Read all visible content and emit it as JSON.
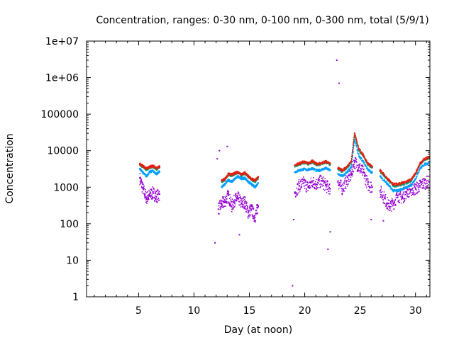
{
  "chart_data": {
    "type": "scatter",
    "title": "Concentration, ranges: 0-30 nm, 0-100 nm, 0-300 nm, total (5/9/1)",
    "xlabel": "Day (at noon)",
    "ylabel": "Concentration",
    "xlim": [
      0.3,
      31.3
    ],
    "ylim": [
      1,
      10000000
    ],
    "yscale": "log",
    "grid": false,
    "legend": "none",
    "x_ticks": [
      5,
      10,
      15,
      20,
      25,
      30
    ],
    "x_tick_labels": [
      "5",
      "10",
      "15",
      "20",
      "25",
      "30"
    ],
    "y_ticks": [
      1,
      10,
      100,
      1000,
      10000,
      100000,
      1000000,
      10000000
    ],
    "y_tick_labels": [
      "1",
      "10",
      "100",
      "1000",
      "10000",
      "100000",
      "1e+06",
      "1e+07"
    ],
    "series": [
      {
        "color": "#9400d3",
        "x": [
          5.1,
          5.4,
          5.7,
          6.0,
          6.3,
          6.6,
          6.9,
          12.2,
          12.5,
          12.8,
          13.1,
          13.4,
          13.7,
          14.0,
          14.3,
          14.6,
          14.9,
          15.2,
          15.5,
          15.8,
          19.1,
          19.5,
          19.9,
          20.3,
          20.7,
          21.1,
          21.5,
          21.9,
          22.3,
          23.0,
          23.4,
          23.8,
          24.2,
          24.5,
          24.9,
          25.3,
          25.7,
          26.1,
          26.8,
          27.2,
          27.6,
          28.0,
          28.4,
          28.8,
          29.2,
          29.6,
          30.0,
          30.4,
          30.8,
          31.2
        ],
        "y": [
          1800,
          900,
          500,
          600,
          700,
          550,
          650,
          250,
          350,
          400,
          600,
          300,
          450,
          500,
          350,
          400,
          200,
          250,
          150,
          300,
          700,
          1100,
          1300,
          1000,
          1400,
          1200,
          1500,
          1100,
          900,
          1400,
          900,
          1500,
          2200,
          5000,
          3500,
          2500,
          1200,
          1000,
          800,
          500,
          300,
          350,
          600,
          500,
          750,
          850,
          900,
          1100,
          1300,
          1400
        ]
      },
      {
        "color": "#009eff",
        "x": [
          5.1,
          5.4,
          5.7,
          6.0,
          6.3,
          6.6,
          6.9,
          12.5,
          12.8,
          13.1,
          13.4,
          13.7,
          14.0,
          14.3,
          14.6,
          14.9,
          15.2,
          15.5,
          15.8,
          19.1,
          19.5,
          19.9,
          20.3,
          20.7,
          21.1,
          21.5,
          21.9,
          22.3,
          23.0,
          23.4,
          23.8,
          24.2,
          24.5,
          24.9,
          25.3,
          25.7,
          26.1,
          26.8,
          27.2,
          27.6,
          28.0,
          28.4,
          28.8,
          29.2,
          29.6,
          30.0,
          30.4,
          30.8,
          31.2
        ],
        "y": [
          3200,
          2500,
          2000,
          2600,
          2800,
          2300,
          2700,
          1000,
          1200,
          1600,
          1400,
          1700,
          2000,
          1700,
          1800,
          1400,
          1200,
          1000,
          1300,
          2600,
          2900,
          3100,
          3000,
          3300,
          2800,
          3000,
          3300,
          2900,
          2300,
          2000,
          2500,
          3500,
          20000,
          7000,
          5000,
          3000,
          2500,
          2000,
          1500,
          1100,
          800,
          800,
          900,
          1000,
          1100,
          1700,
          3200,
          4200,
          4600
        ]
      },
      {
        "color": "#009e73",
        "x": [
          5.1,
          5.4,
          5.7,
          6.0,
          6.3,
          6.6,
          6.9,
          12.5,
          12.8,
          13.1,
          13.4,
          13.7,
          14.0,
          14.3,
          14.6,
          14.9,
          15.2,
          15.5,
          15.8,
          19.1,
          19.5,
          19.9,
          20.3,
          20.7,
          21.1,
          21.5,
          21.9,
          22.3,
          23.0,
          23.4,
          23.8,
          24.2,
          24.5,
          24.9,
          25.3,
          25.7,
          26.1,
          26.8,
          27.2,
          27.6,
          28.0,
          28.4,
          28.8,
          29.2,
          29.6,
          30.0,
          30.4,
          30.8,
          31.2
        ],
        "y": [
          4200,
          3600,
          3000,
          3400,
          3700,
          3100,
          3500,
          1400,
          1600,
          2200,
          2100,
          2300,
          2500,
          2100,
          2400,
          1900,
          1600,
          1400,
          1800,
          3800,
          4200,
          4700,
          4300,
          4900,
          4100,
          4300,
          4800,
          4200,
          3100,
          2700,
          3400,
          4800,
          28000,
          10000,
          7000,
          4200,
          3500,
          2700,
          2000,
          1500,
          1100,
          1100,
          1200,
          1300,
          1500,
          2300,
          4200,
          5600,
          6300
        ]
      },
      {
        "color": "#e51e10",
        "x": [
          5.1,
          5.4,
          5.7,
          6.0,
          6.3,
          6.6,
          6.9,
          12.5,
          12.8,
          13.1,
          13.4,
          13.7,
          14.0,
          14.3,
          14.6,
          14.9,
          15.2,
          15.5,
          15.8,
          19.1,
          19.5,
          19.9,
          20.3,
          20.7,
          21.1,
          21.5,
          21.9,
          22.3,
          23.0,
          23.4,
          23.8,
          24.2,
          24.5,
          24.9,
          25.3,
          25.7,
          26.1,
          26.8,
          27.2,
          27.6,
          28.0,
          28.4,
          28.8,
          29.2,
          29.6,
          30.0,
          30.4,
          30.8,
          31.2
        ],
        "y": [
          4400,
          3800,
          3200,
          3600,
          3900,
          3300,
          3700,
          1500,
          1700,
          2300,
          2200,
          2400,
          2600,
          2200,
          2500,
          2000,
          1700,
          1500,
          1900,
          4000,
          4400,
          5000,
          4500,
          5200,
          4300,
          4500,
          5100,
          4400,
          3300,
          2900,
          3600,
          5100,
          30000,
          11000,
          7500,
          4400,
          3700,
          2900,
          2100,
          1600,
          1200,
          1200,
          1300,
          1400,
          1600,
          2400,
          4400,
          5900,
          6600
        ]
      }
    ],
    "outliers": {
      "color": "#9400d3",
      "x": [
        11.9,
        12.1,
        12.3,
        13.0,
        14.1,
        18.9,
        19.0,
        22.1,
        22.3,
        22.9,
        23.1,
        26.0,
        27.1
      ],
      "y": [
        30,
        6000,
        10000,
        13000,
        50,
        2,
        130,
        20,
        60,
        3000000,
        700000,
        130,
        120
      ]
    }
  }
}
